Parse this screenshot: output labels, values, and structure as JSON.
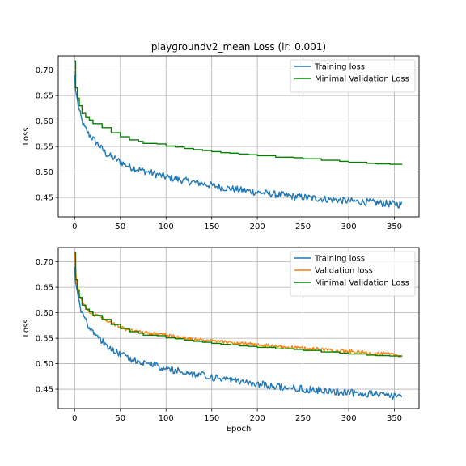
{
  "chart_data": [
    {
      "type": "line",
      "title": "playgroundv2_mean Loss (lr: 0.001)",
      "xlabel": "",
      "ylabel": "Loss",
      "xlim": [
        -18,
        377
      ],
      "ylim": [
        0.412,
        0.728
      ],
      "xticks": [
        "0",
        "50",
        "100",
        "150",
        "200",
        "250",
        "300",
        "350"
      ],
      "xtick_values": [
        0,
        50,
        100,
        150,
        200,
        250,
        300,
        350
      ],
      "yticks": [
        "0.45",
        "0.50",
        "0.55",
        "0.60",
        "0.65",
        "0.70"
      ],
      "ytick_values": [
        0.45,
        0.5,
        0.55,
        0.6,
        0.65,
        0.7
      ],
      "grid": true,
      "legend_position": "top-right",
      "series": [
        {
          "name": "Training loss",
          "color": "#1f77b4",
          "points": [
            [
              0,
              0.69
            ],
            [
              1,
              0.66
            ],
            [
              3,
              0.64
            ],
            [
              5,
              0.62
            ],
            [
              8,
              0.6
            ],
            [
              10,
              0.59
            ],
            [
              15,
              0.575
            ],
            [
              20,
              0.565
            ],
            [
              25,
              0.555
            ],
            [
              30,
              0.545
            ],
            [
              35,
              0.535
            ],
            [
              40,
              0.53
            ],
            [
              50,
              0.52
            ],
            [
              60,
              0.51
            ],
            [
              70,
              0.505
            ],
            [
              80,
              0.5
            ],
            [
              90,
              0.495
            ],
            [
              100,
              0.49
            ],
            [
              120,
              0.483
            ],
            [
              140,
              0.477
            ],
            [
              160,
              0.47
            ],
            [
              180,
              0.465
            ],
            [
              200,
              0.46
            ],
            [
              220,
              0.456
            ],
            [
              240,
              0.452
            ],
            [
              260,
              0.449
            ],
            [
              280,
              0.446
            ],
            [
              300,
              0.443
            ],
            [
              320,
              0.441
            ],
            [
              340,
              0.438
            ],
            [
              358,
              0.436
            ]
          ]
        },
        {
          "name": "Minimal Validation Loss",
          "color": "#008000",
          "points": [
            [
              0,
              0.718
            ],
            [
              1,
              0.665
            ],
            [
              3,
              0.645
            ],
            [
              5,
              0.63
            ],
            [
              8,
              0.615
            ],
            [
              12,
              0.607
            ],
            [
              16,
              0.602
            ],
            [
              20,
              0.595
            ],
            [
              30,
              0.587
            ],
            [
              40,
              0.577
            ],
            [
              50,
              0.569
            ],
            [
              60,
              0.563
            ],
            [
              70,
              0.56
            ],
            [
              75,
              0.556
            ],
            [
              90,
              0.555
            ],
            [
              100,
              0.551
            ],
            [
              110,
              0.549
            ],
            [
              120,
              0.546
            ],
            [
              130,
              0.544
            ],
            [
              140,
              0.542
            ],
            [
              150,
              0.54
            ],
            [
              160,
              0.538
            ],
            [
              170,
              0.537
            ],
            [
              180,
              0.535
            ],
            [
              190,
              0.534
            ],
            [
              200,
              0.532
            ],
            [
              210,
              0.532
            ],
            [
              220,
              0.529
            ],
            [
              240,
              0.528
            ],
            [
              250,
              0.526
            ],
            [
              270,
              0.523
            ],
            [
              290,
              0.521
            ],
            [
              300,
              0.519
            ],
            [
              320,
              0.517
            ],
            [
              330,
              0.516
            ],
            [
              345,
              0.515
            ],
            [
              358,
              0.514
            ]
          ]
        }
      ]
    },
    {
      "type": "line",
      "title": "",
      "xlabel": "Epoch",
      "ylabel": "Loss",
      "xlim": [
        -18,
        377
      ],
      "ylim": [
        0.412,
        0.728
      ],
      "xticks": [
        "0",
        "50",
        "100",
        "150",
        "200",
        "250",
        "300",
        "350"
      ],
      "xtick_values": [
        0,
        50,
        100,
        150,
        200,
        250,
        300,
        350
      ],
      "yticks": [
        "0.45",
        "0.50",
        "0.55",
        "0.60",
        "0.65",
        "0.70"
      ],
      "ytick_values": [
        0.45,
        0.5,
        0.55,
        0.6,
        0.65,
        0.7
      ],
      "grid": true,
      "legend_position": "top-right",
      "series": [
        {
          "name": "Training loss",
          "color": "#1f77b4",
          "points": [
            [
              0,
              0.69
            ],
            [
              1,
              0.66
            ],
            [
              3,
              0.64
            ],
            [
              5,
              0.62
            ],
            [
              8,
              0.6
            ],
            [
              10,
              0.59
            ],
            [
              15,
              0.575
            ],
            [
              20,
              0.565
            ],
            [
              25,
              0.555
            ],
            [
              30,
              0.545
            ],
            [
              35,
              0.535
            ],
            [
              40,
              0.53
            ],
            [
              50,
              0.52
            ],
            [
              60,
              0.51
            ],
            [
              70,
              0.505
            ],
            [
              80,
              0.5
            ],
            [
              90,
              0.495
            ],
            [
              100,
              0.49
            ],
            [
              120,
              0.483
            ],
            [
              140,
              0.477
            ],
            [
              160,
              0.47
            ],
            [
              180,
              0.465
            ],
            [
              200,
              0.46
            ],
            [
              220,
              0.456
            ],
            [
              240,
              0.452
            ],
            [
              260,
              0.449
            ],
            [
              280,
              0.446
            ],
            [
              300,
              0.443
            ],
            [
              320,
              0.441
            ],
            [
              340,
              0.438
            ],
            [
              358,
              0.436
            ]
          ]
        },
        {
          "name": "Validation loss",
          "color": "#ff7f0e",
          "points": [
            [
              0,
              0.718
            ],
            [
              2,
              0.66
            ],
            [
              5,
              0.635
            ],
            [
              10,
              0.615
            ],
            [
              15,
              0.605
            ],
            [
              20,
              0.597
            ],
            [
              30,
              0.59
            ],
            [
              40,
              0.58
            ],
            [
              50,
              0.572
            ],
            [
              60,
              0.566
            ],
            [
              70,
              0.563
            ],
            [
              80,
              0.56
            ],
            [
              90,
              0.558
            ],
            [
              100,
              0.556
            ],
            [
              120,
              0.55
            ],
            [
              140,
              0.546
            ],
            [
              160,
              0.543
            ],
            [
              180,
              0.54
            ],
            [
              200,
              0.537
            ],
            [
              220,
              0.534
            ],
            [
              240,
              0.531
            ],
            [
              260,
              0.529
            ],
            [
              280,
              0.527
            ],
            [
              300,
              0.524
            ],
            [
              320,
              0.521
            ],
            [
              340,
              0.519
            ],
            [
              358,
              0.516
            ]
          ]
        },
        {
          "name": "Minimal Validation Loss",
          "color": "#008000",
          "points": [
            [
              0,
              0.718
            ],
            [
              1,
              0.665
            ],
            [
              3,
              0.645
            ],
            [
              5,
              0.63
            ],
            [
              8,
              0.615
            ],
            [
              12,
              0.607
            ],
            [
              16,
              0.602
            ],
            [
              20,
              0.595
            ],
            [
              30,
              0.587
            ],
            [
              40,
              0.577
            ],
            [
              50,
              0.569
            ],
            [
              60,
              0.563
            ],
            [
              70,
              0.56
            ],
            [
              75,
              0.556
            ],
            [
              90,
              0.555
            ],
            [
              100,
              0.551
            ],
            [
              110,
              0.549
            ],
            [
              120,
              0.546
            ],
            [
              130,
              0.544
            ],
            [
              140,
              0.542
            ],
            [
              150,
              0.54
            ],
            [
              160,
              0.538
            ],
            [
              170,
              0.537
            ],
            [
              180,
              0.535
            ],
            [
              190,
              0.534
            ],
            [
              200,
              0.532
            ],
            [
              210,
              0.532
            ],
            [
              220,
              0.529
            ],
            [
              240,
              0.528
            ],
            [
              250,
              0.526
            ],
            [
              270,
              0.523
            ],
            [
              290,
              0.521
            ],
            [
              300,
              0.519
            ],
            [
              320,
              0.517
            ],
            [
              330,
              0.516
            ],
            [
              345,
              0.515
            ],
            [
              358,
              0.514
            ]
          ]
        }
      ]
    }
  ]
}
